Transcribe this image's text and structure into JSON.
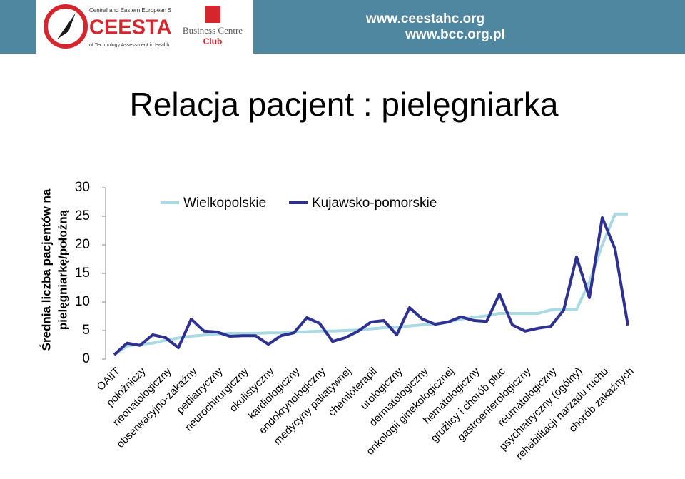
{
  "header": {
    "logo_name": "CEESTAHC",
    "logo_society_line1": "Central and Eastern European Society",
    "logo_society_line2": "of Technology Assessment in Health Care",
    "club_line1": "Business Centre",
    "club_line2": "Club",
    "url1": "www.ceestahc.org",
    "url2": "www.bcc.org.pl"
  },
  "chart_data": {
    "type": "line",
    "title": "Relacja pacjent : pielęgniarka",
    "y_label_line1": "Średnia liczba pacjentów na",
    "y_label_line2": "pielęgniarkę/położną",
    "categories": [
      "OAiIT",
      null,
      "położniczy",
      null,
      "neonatologiczny",
      null,
      "obserwacyjno-zakaźny",
      null,
      "pediatryczny",
      null,
      "neurochirurgiczny",
      null,
      "okulistyczny",
      null,
      "kardiologiczny",
      null,
      "endokrynologiczny",
      null,
      "medycyny paliatywnej",
      null,
      "chemioterapii",
      null,
      "urologiczny",
      null,
      "dermatologiczny",
      null,
      "onkologii ginekologicznej",
      null,
      "hematologiczny",
      null,
      "gruźlicy i chorób płuc",
      null,
      "gastroenterologiczny",
      null,
      "reumatologiczny",
      null,
      "psychiatryczny (ogólny)",
      null,
      "rehabilitacji narządu ruchu",
      null,
      "chorób zakaźnych"
    ],
    "series": [
      {
        "name": "Wielkopolskie",
        "color": "#a9d9e2",
        "values": [
          0.75,
          2.3,
          2.6,
          2.8,
          3.3,
          3.7,
          4.0,
          4.2,
          4.4,
          4.5,
          4.5,
          4.5,
          4.6,
          4.6,
          4.7,
          4.8,
          4.9,
          4.9,
          5.0,
          5.1,
          5.3,
          5.5,
          5.6,
          5.8,
          6.0,
          6.2,
          6.5,
          7.0,
          7.3,
          7.6,
          8.0,
          8.0,
          8.0,
          8.0,
          8.6,
          8.7,
          8.7,
          13.5,
          20,
          25.4,
          25.4
        ]
      },
      {
        "name": "Kujawsko-pomorskie",
        "color": "#2e3192",
        "values": [
          0.75,
          2.8,
          2.4,
          4.25,
          3.75,
          2,
          7,
          4.9,
          4.75,
          4,
          4.1,
          4.1,
          2.6,
          4.1,
          4.6,
          7.25,
          6.25,
          3.1,
          3.75,
          4.9,
          6.5,
          6.75,
          4.25,
          9,
          7,
          6.1,
          6.5,
          7.4,
          6.75,
          6.6,
          11.4,
          6,
          4.9,
          5.4,
          5.75,
          8.6,
          17.9,
          10.75,
          24.75,
          19.25,
          5.9
        ]
      }
    ],
    "ylim": [
      0,
      30
    ],
    "yticks": [
      0,
      5,
      10,
      15,
      20,
      25,
      30
    ],
    "grid": false,
    "legend": "top"
  }
}
